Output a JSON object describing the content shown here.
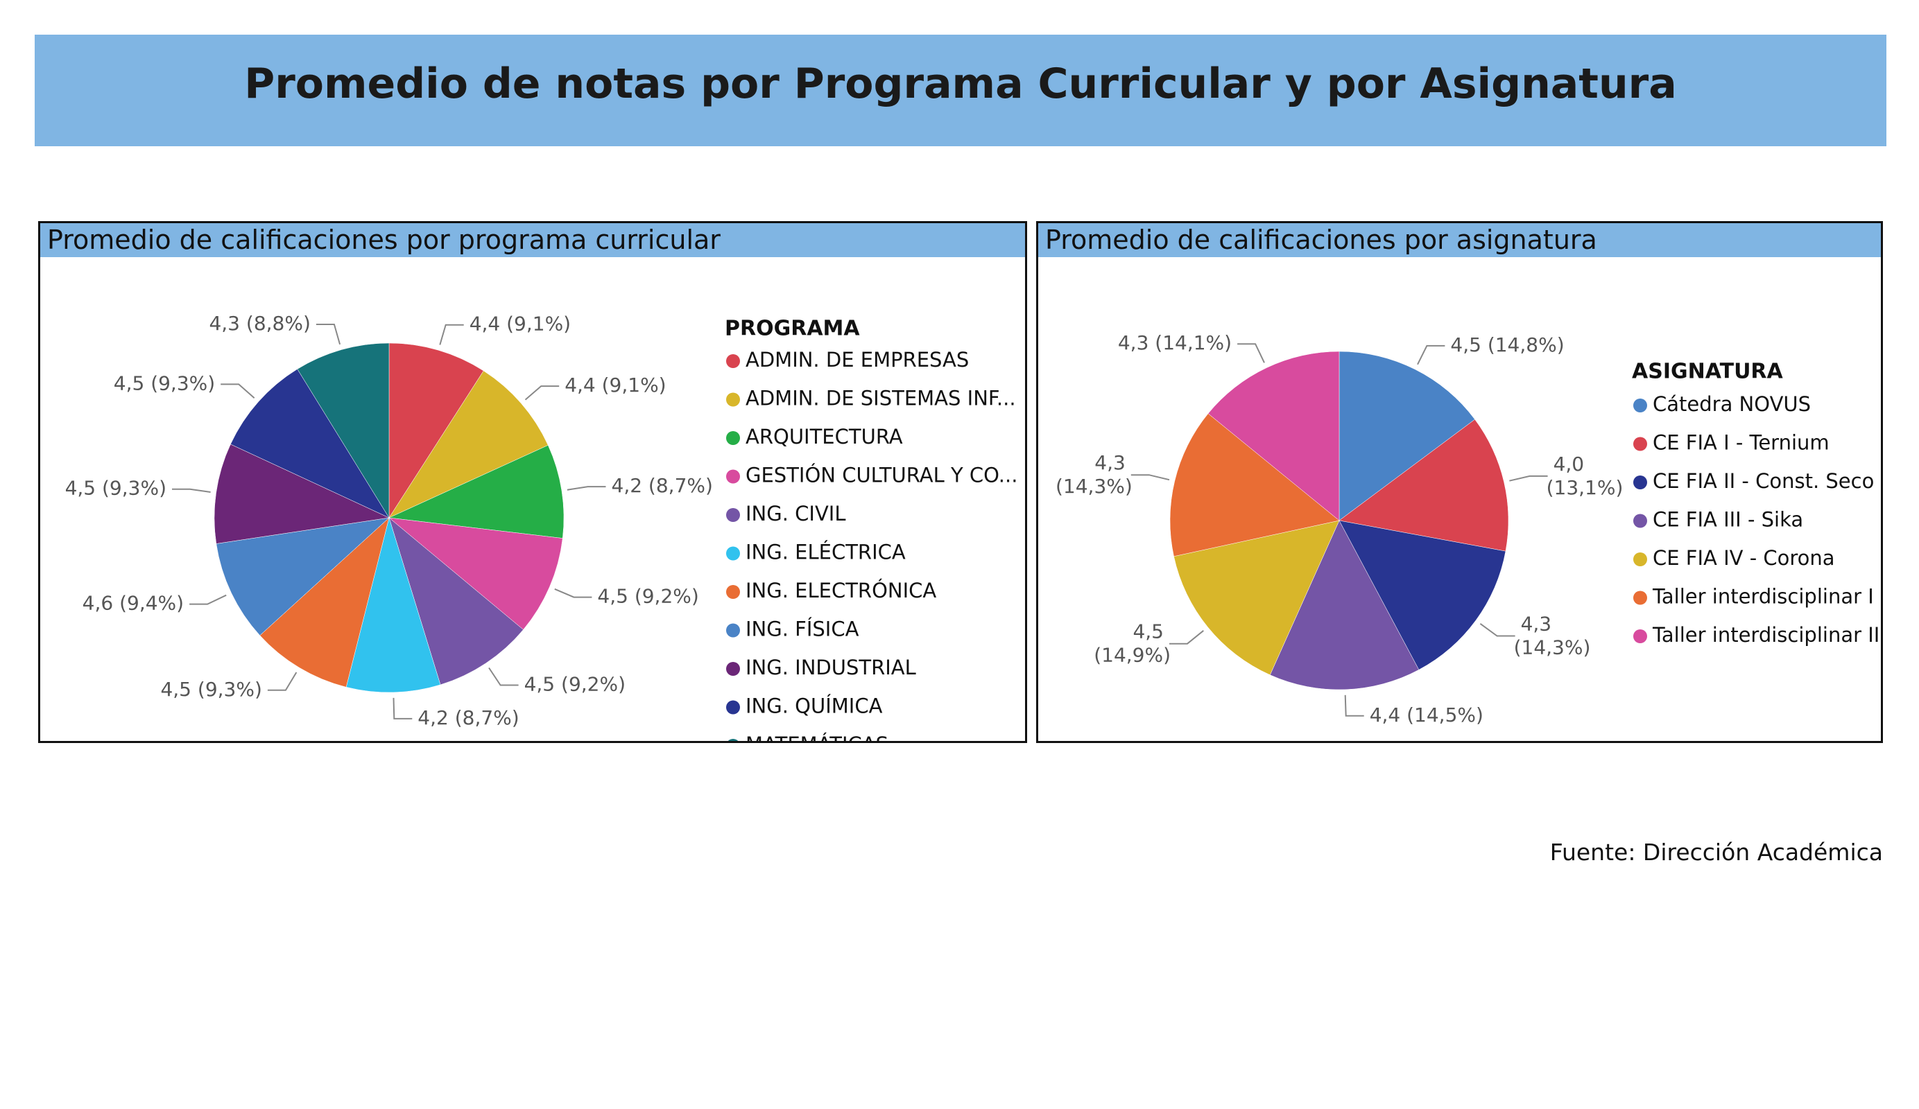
{
  "header": {
    "title": "Promedio de notas por Programa Curricular y por Asignatura"
  },
  "footer": {
    "source": "Fuente: Dirección Académica"
  },
  "chart_data": [
    {
      "type": "pie",
      "title": "Promedio de calificaciones por programa curricular",
      "legend_title": "PROGRAMA",
      "legend_position": "right",
      "slices": [
        {
          "name": "ADMIN. DE EMPRESAS",
          "legend_label": "ADMIN. DE EMPRESAS",
          "value": 4.4,
          "percent": 9.1,
          "label": "4,4 (9,1%)",
          "color": "#d9434f"
        },
        {
          "name": "ADMIN. DE SISTEMAS INF...",
          "legend_label": "ADMIN. DE SISTEMAS INF...",
          "value": 4.4,
          "percent": 9.1,
          "label": "4,4 (9,1%)",
          "color": "#d8b62a"
        },
        {
          "name": "ARQUITECTURA",
          "legend_label": "ARQUITECTURA",
          "value": 4.2,
          "percent": 8.7,
          "label": "4,2 (8,7%)",
          "color": "#25ae47"
        },
        {
          "name": "GESTIÓN CULTURAL Y CO...",
          "legend_label": "GESTIÓN CULTURAL Y CO...",
          "value": 4.5,
          "percent": 9.2,
          "label": "4,5 (9,2%)",
          "color": "#d84b9e"
        },
        {
          "name": "ING. CIVIL",
          "legend_label": "ING. CIVIL",
          "value": 4.5,
          "percent": 9.2,
          "label": "4,5 (9,2%)",
          "color": "#7455a6"
        },
        {
          "name": "ING. ELÉCTRICA",
          "legend_label": "ING. ELÉCTRICA",
          "value": 4.2,
          "percent": 8.7,
          "label": "4,2 (8,7%)",
          "color": "#31c2ee"
        },
        {
          "name": "ING. ELECTRÓNICA",
          "legend_label": "ING. ELECTRÓNICA",
          "value": 4.5,
          "percent": 9.3,
          "label": "4,5 (9,3%)",
          "color": "#e96d34"
        },
        {
          "name": "ING. FÍSICA",
          "legend_label": "ING. FÍSICA",
          "value": 4.6,
          "percent": 9.4,
          "label": "4,6 (9,4%)",
          "color": "#4a83c6"
        },
        {
          "name": "ING. INDUSTRIAL",
          "legend_label": "ING. INDUSTRIAL",
          "value": 4.5,
          "percent": 9.3,
          "label": "4,5 (9,3%)",
          "color": "#6b2677"
        },
        {
          "name": "ING. QUÍMICA",
          "legend_label": "ING. QUÍMICA",
          "value": 4.5,
          "percent": 9.3,
          "label": "4,5 (9,3%)",
          "color": "#283591"
        },
        {
          "name": "MATEMÁTICAS",
          "legend_label": "MATEMÁTICAS",
          "value": 4.3,
          "percent": 8.8,
          "label": "4,3 (8,8%)",
          "color": "#16737a"
        }
      ]
    },
    {
      "type": "pie",
      "title": "Promedio de calificaciones por asignatura",
      "legend_title": "ASIGNATURA",
      "legend_position": "right",
      "slices": [
        {
          "name": "Cátedra NOVUS",
          "legend_label": "Cátedra NOVUS",
          "value": 4.5,
          "percent": 14.8,
          "label": "4,5 (14,8%)",
          "color": "#4a83c6"
        },
        {
          "name": "CE FIA I - Ternium",
          "legend_label": "CE FIA I - Ternium",
          "value": 4.0,
          "percent": 13.1,
          "label": "4,0 (13,1%)",
          "color": "#d9434f"
        },
        {
          "name": "CE FIA II - Const. Seco",
          "legend_label": "CE FIA II - Const. Seco",
          "value": 4.3,
          "percent": 14.3,
          "label": "4,3 (14,3%)",
          "color": "#283591"
        },
        {
          "name": "CE FIA III - Sika",
          "legend_label": "CE FIA III - Sika",
          "value": 4.4,
          "percent": 14.5,
          "label": "4,4 (14,5%)",
          "color": "#7455a6"
        },
        {
          "name": "CE FIA IV - Corona",
          "legend_label": "CE FIA IV - Corona",
          "value": 4.5,
          "percent": 14.9,
          "label": "4,5 (14,9%)",
          "color": "#d8b62a"
        },
        {
          "name": "Taller interdisciplinar I",
          "legend_label": "Taller interdisciplinar I",
          "value": 4.3,
          "percent": 14.3,
          "label": "4,3 (14,3%)",
          "color": "#e96d34"
        },
        {
          "name": "Taller interdisciplinar II",
          "legend_label": "Taller interdisciplinar II",
          "value": 4.3,
          "percent": 14.1,
          "label": "4,3 (14,1%)",
          "color": "#d84b9e"
        }
      ]
    }
  ]
}
